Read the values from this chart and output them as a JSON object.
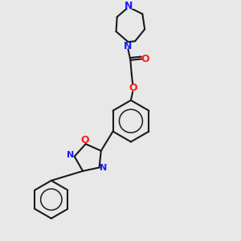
{
  "bg_color": "#e8e8e8",
  "bond_color": "#1a1a1a",
  "N_color": "#1a1aff",
  "O_color": "#ff1a1a",
  "bond_lw": 1.5,
  "font_size": 9.0,
  "figsize": [
    3.0,
    3.0
  ],
  "dpi": 100,
  "xlim": [
    0,
    10
  ],
  "ylim": [
    0,
    10
  ],
  "aromatic_lw": 1.1
}
